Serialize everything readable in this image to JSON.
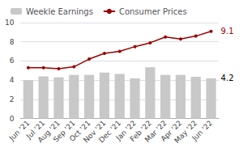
{
  "chart_data": {
    "type": "bar",
    "categories": [
      "Jun '21",
      "Jul '21",
      "Aug '21",
      "Sep '21",
      "Oct '21",
      "Nov '21",
      "Dec '21",
      "Jan '22",
      "Feb '22",
      "Mar '22",
      "Apr '22",
      "May '22",
      "Jun '22"
    ],
    "series": [
      {
        "name": "Weekle Earnings",
        "type": "bar",
        "color": "#c8c8c8",
        "values": [
          4.0,
          4.4,
          4.3,
          4.55,
          4.55,
          4.8,
          4.65,
          4.2,
          5.35,
          4.55,
          4.55,
          4.35,
          4.2
        ]
      },
      {
        "name": "Consumer Prices",
        "type": "line",
        "color": "#990000",
        "marker": "circle",
        "values": [
          5.3,
          5.3,
          5.2,
          5.4,
          6.2,
          6.8,
          7.0,
          7.5,
          7.9,
          8.5,
          8.3,
          8.6,
          9.1
        ]
      }
    ],
    "annotations": [
      {
        "text": "9.1",
        "x": "Jun '22",
        "y": 9.1,
        "color": "#990000"
      },
      {
        "text": "4.2",
        "x": "Jun '22",
        "y": 4.2,
        "color": "#000000"
      }
    ],
    "ylim": [
      0,
      10
    ],
    "yticks": [
      0,
      2,
      4,
      6,
      8,
      10
    ],
    "grid": true,
    "legend": "upper left"
  }
}
